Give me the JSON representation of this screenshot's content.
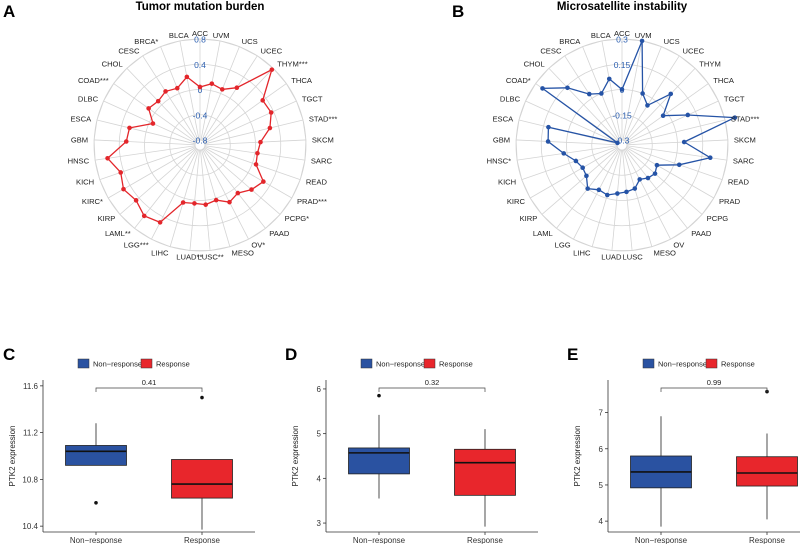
{
  "panels": {
    "A": "A",
    "B": "B",
    "C": "C",
    "D": "D",
    "E": "E"
  },
  "colors": {
    "red": "#e3262b",
    "blue": "#2553a6",
    "grid": "#d4d4d4",
    "rlabel": "#2c5fb0",
    "box_red": "#e8262c",
    "box_blue": "#2a52a1"
  },
  "chart_data": [
    {
      "id": "A",
      "type": "radar",
      "title": "Tumor mutation burden",
      "categories": [
        "ACC",
        "UVM",
        "UCS",
        "UCEC",
        "THYM***",
        "THCA",
        "TGCT",
        "STAD***",
        "SKCM",
        "SARC",
        "READ",
        "PRAD***",
        "PCPG*",
        "PAAD",
        "OV*",
        "MESO",
        "LUSC**",
        "LUAD**",
        "LIHC",
        "LGG***",
        "LAML**",
        "KIRP",
        "KIRC*",
        "KICH",
        "HNSC",
        "GBM",
        "ESCA",
        "DLBC",
        "COAD***",
        "CHOL",
        "CESC",
        "BRCA*",
        "BLCA"
      ],
      "values": [
        0.04,
        0.11,
        0.07,
        0.2,
        0.77,
        0.34,
        0.36,
        0.26,
        0.08,
        0.04,
        0.06,
        0.28,
        0.2,
        0.09,
        0.14,
        0.03,
        0.07,
        0.05,
        0.07,
        0.5,
        0.55,
        0.46,
        0.52,
        0.45,
        0.6,
        0.29,
        0.27,
        -0.06,
        0.12,
        0.08,
        0.13,
        0.09,
        0.22
      ],
      "rlim": [
        -0.8,
        0.8
      ],
      "r_ticks": [
        -0.8,
        -0.4,
        0,
        0.4,
        0.8
      ],
      "r_tick_labels": [
        "-0.8",
        "-0.4",
        "0",
        "0.4",
        "0.8"
      ],
      "color": "red"
    },
    {
      "id": "B",
      "type": "radar",
      "title": "Microsatellite instability",
      "categories": [
        "ACC",
        "UVM",
        "UCS",
        "UCEC",
        "THYM",
        "THCA",
        "TGCT",
        "STAD***",
        "SKCM",
        "SARC",
        "READ",
        "PRAD",
        "PCPG",
        "PAAD",
        "OV",
        "MESO",
        "LUSC",
        "LUAD",
        "LIHC",
        "LGG",
        "LAML",
        "KIRP",
        "KIRC",
        "KICH",
        "HNSC*",
        "GBM",
        "ESCA",
        "DLBC",
        "COAD*",
        "CHOL",
        "CESC",
        "BRCA",
        "BLCA"
      ],
      "values": [
        0.0,
        0.3,
        0.0,
        -0.05,
        0.09,
        -0.03,
        0.1,
        0.36,
        0.04,
        0.2,
        0.03,
        -0.09,
        -0.07,
        -0.08,
        -0.1,
        -0.06,
        -0.05,
        -0.04,
        -0.02,
        -0.03,
        0.0,
        -0.05,
        -0.06,
        -0.04,
        0.02,
        0.11,
        0.12,
        -0.3,
        0.25,
        0.14,
        0.03,
        0.0,
        0.07
      ],
      "rlim": [
        -0.3,
        0.3
      ],
      "r_ticks": [
        -0.3,
        -0.15,
        0,
        0.15,
        0.3
      ],
      "r_tick_labels": [
        "-0.3",
        "-0.15",
        "0",
        "0.15",
        "0.3"
      ],
      "color": "blue"
    },
    {
      "id": "C",
      "type": "boxplot",
      "ylabel": "PTK2 expression",
      "categories": [
        "Non−response",
        "Response"
      ],
      "legend": [
        "Non−response",
        "Response"
      ],
      "ylim": [
        10.35,
        11.65
      ],
      "y_ticks": [
        10.4,
        10.8,
        11.2,
        11.6
      ],
      "y_tick_labels": [
        "10.4",
        "10.8",
        "11.2",
        "11.6"
      ],
      "p_value": "0.41",
      "boxes": [
        {
          "q1": 10.92,
          "median": 11.04,
          "q3": 11.09,
          "lw": 10.92,
          "uw": 11.28,
          "outliers": [
            10.6
          ]
        },
        {
          "q1": 10.64,
          "median": 10.76,
          "q3": 10.97,
          "lw": 10.37,
          "uw": 10.97,
          "outliers": [
            11.5
          ]
        }
      ]
    },
    {
      "id": "D",
      "type": "boxplot",
      "ylabel": "PTK2 expression",
      "categories": [
        "Non−response",
        "Response"
      ],
      "legend": [
        "Non−response",
        "Response"
      ],
      "ylim": [
        2.8,
        6.2
      ],
      "y_ticks": [
        3,
        4,
        5,
        6
      ],
      "y_tick_labels": [
        "3",
        "4",
        "5",
        "6"
      ],
      "p_value": "0.32",
      "boxes": [
        {
          "q1": 4.1,
          "median": 4.57,
          "q3": 4.68,
          "lw": 3.55,
          "uw": 5.42,
          "outliers": [
            5.85
          ]
        },
        {
          "q1": 3.62,
          "median": 4.35,
          "q3": 4.65,
          "lw": 2.92,
          "uw": 5.1,
          "outliers": []
        }
      ]
    },
    {
      "id": "E",
      "type": "boxplot",
      "ylabel": "PTK2 expression",
      "categories": [
        "Non−response",
        "Response"
      ],
      "legend": [
        "Non−response",
        "Response"
      ],
      "ylim": [
        3.7,
        7.9
      ],
      "y_ticks": [
        4,
        5,
        6,
        7
      ],
      "y_tick_labels": [
        "4",
        "5",
        "6",
        "7"
      ],
      "p_value": "0.99",
      "boxes": [
        {
          "q1": 4.92,
          "median": 5.36,
          "q3": 5.8,
          "lw": 3.85,
          "uw": 6.9,
          "outliers": []
        },
        {
          "q1": 4.97,
          "median": 5.33,
          "q3": 5.78,
          "lw": 4.05,
          "uw": 6.42,
          "outliers": [
            7.58
          ]
        }
      ]
    }
  ]
}
